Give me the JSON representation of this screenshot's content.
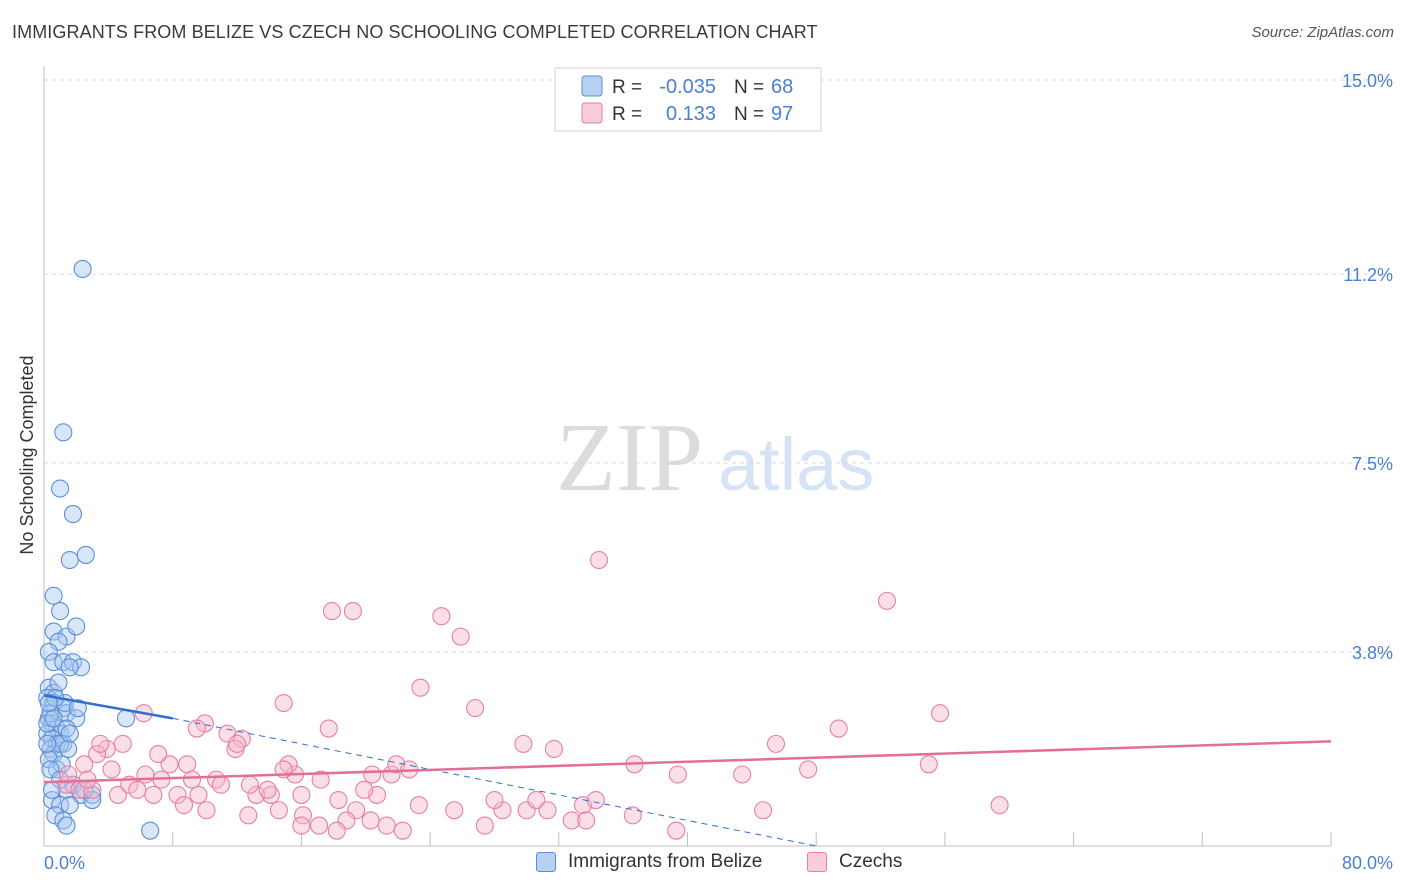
{
  "header": {
    "title": "IMMIGRANTS FROM BELIZE VS CZECH NO SCHOOLING COMPLETED CORRELATION CHART",
    "source": "Source: ZipAtlas.com"
  },
  "watermark": {
    "zip": "ZIP",
    "atlas": "atlas"
  },
  "colors": {
    "belize_fill": "#a8c8f0",
    "belize_stroke": "#5b8fd9",
    "belize_line": "#2f6fd0",
    "czech_fill": "#f7b8cc",
    "czech_stroke": "#e87fa0",
    "czech_line": "#e36f98",
    "axis_label": "#4a7fd4",
    "grid": "#d8d8d8"
  },
  "chart_data": {
    "type": "scatter",
    "title": "IMMIGRANTS FROM BELIZE VS CZECH NO SCHOOLING COMPLETED CORRELATION CHART",
    "xlabel": "",
    "ylabel": "No Schooling Completed",
    "xlim": [
      0,
      80
    ],
    "ylim": [
      0,
      15
    ],
    "x_tick_labels": {
      "min": "0.0%",
      "max": "80.0%"
    },
    "y_ticks": [
      {
        "value": 3.8,
        "label": "3.8%"
      },
      {
        "value": 7.5,
        "label": "7.5%"
      },
      {
        "value": 11.2,
        "label": "11.2%"
      },
      {
        "value": 15.0,
        "label": "15.0%"
      }
    ],
    "legend": [
      {
        "name": "Immigrants from Belize",
        "r_label": "R =",
        "r_value": "-0.035",
        "n_label": "N =",
        "n_value": "68"
      },
      {
        "name": "Czechs",
        "r_label": "R =",
        "r_value": "0.133",
        "n_label": "N =",
        "n_value": "97"
      }
    ],
    "trend_lines": [
      {
        "series": "Immigrants from Belize",
        "x0": 0,
        "y0": 2.95,
        "x1": 8,
        "y1": 2.5,
        "dashed_to_x": 48,
        "dashed_to_y": 0.0
      },
      {
        "series": "Czechs",
        "x0": 0,
        "y0": 1.25,
        "x1": 80,
        "y1": 2.05
      }
    ],
    "series": [
      {
        "name": "Immigrants from Belize",
        "points": [
          [
            2.4,
            11.3
          ],
          [
            1.2,
            8.1
          ],
          [
            1.0,
            7.0
          ],
          [
            1.8,
            6.5
          ],
          [
            1.6,
            5.6
          ],
          [
            2.6,
            5.7
          ],
          [
            0.6,
            4.9
          ],
          [
            1.0,
            4.6
          ],
          [
            0.6,
            4.2
          ],
          [
            1.4,
            4.1
          ],
          [
            2.0,
            4.3
          ],
          [
            0.9,
            4.0
          ],
          [
            0.3,
            3.8
          ],
          [
            0.6,
            3.6
          ],
          [
            1.2,
            3.6
          ],
          [
            1.8,
            3.6
          ],
          [
            2.3,
            3.5
          ],
          [
            0.3,
            3.1
          ],
          [
            0.6,
            3.0
          ],
          [
            0.2,
            2.9
          ],
          [
            0.6,
            2.8
          ],
          [
            1.2,
            2.7
          ],
          [
            1.4,
            2.6
          ],
          [
            2.0,
            2.5
          ],
          [
            0.3,
            2.5
          ],
          [
            0.5,
            2.4
          ],
          [
            0.8,
            2.3
          ],
          [
            1.0,
            2.2
          ],
          [
            1.4,
            2.3
          ],
          [
            0.2,
            2.2
          ],
          [
            0.5,
            2.1
          ],
          [
            0.8,
            2.0
          ],
          [
            1.2,
            2.0
          ],
          [
            0.4,
            1.9
          ],
          [
            0.6,
            1.8
          ],
          [
            1.0,
            2.0
          ],
          [
            1.5,
            1.9
          ],
          [
            0.3,
            1.7
          ],
          [
            5.1,
            2.5
          ],
          [
            1.6,
            2.2
          ],
          [
            0.4,
            2.6
          ],
          [
            0.2,
            2.4
          ],
          [
            0.8,
            1.5
          ],
          [
            1.4,
            1.1
          ],
          [
            2.3,
            1.0
          ],
          [
            3.0,
            1.0
          ],
          [
            0.5,
            0.9
          ],
          [
            1.0,
            0.8
          ],
          [
            1.6,
            0.8
          ],
          [
            0.7,
            0.6
          ],
          [
            1.2,
            0.5
          ],
          [
            1.4,
            0.4
          ],
          [
            3.0,
            0.9
          ],
          [
            6.6,
            0.3
          ],
          [
            0.2,
            2.0
          ],
          [
            0.6,
            2.5
          ],
          [
            1.1,
            1.6
          ],
          [
            1.8,
            1.2
          ],
          [
            0.9,
            3.2
          ],
          [
            1.3,
            2.8
          ],
          [
            0.4,
            1.5
          ],
          [
            2.1,
            2.7
          ],
          [
            0.7,
            2.9
          ],
          [
            1.6,
            3.5
          ],
          [
            0.3,
            2.8
          ],
          [
            1.0,
            1.3
          ],
          [
            2.5,
            1.1
          ],
          [
            0.5,
            1.1
          ]
        ]
      },
      {
        "name": "Czechs",
        "points": [
          [
            34.5,
            5.6
          ],
          [
            17.9,
            4.6
          ],
          [
            19.2,
            4.6
          ],
          [
            24.7,
            4.5
          ],
          [
            25.9,
            4.1
          ],
          [
            52.4,
            4.8
          ],
          [
            23.4,
            3.1
          ],
          [
            14.9,
            2.8
          ],
          [
            26.8,
            2.7
          ],
          [
            6.2,
            2.6
          ],
          [
            10.0,
            2.4
          ],
          [
            11.4,
            2.2
          ],
          [
            12.3,
            2.1
          ],
          [
            17.7,
            2.3
          ],
          [
            29.8,
            2.0
          ],
          [
            31.7,
            1.9
          ],
          [
            45.5,
            2.0
          ],
          [
            49.4,
            2.3
          ],
          [
            55.7,
            2.6
          ],
          [
            3.9,
            1.9
          ],
          [
            4.9,
            2.0
          ],
          [
            7.8,
            1.6
          ],
          [
            8.9,
            1.6
          ],
          [
            11.9,
            1.9
          ],
          [
            3.3,
            1.8
          ],
          [
            2.5,
            1.6
          ],
          [
            4.2,
            1.5
          ],
          [
            6.3,
            1.4
          ],
          [
            10.7,
            1.3
          ],
          [
            13.2,
            1.0
          ],
          [
            15.6,
            1.4
          ],
          [
            17.2,
            1.3
          ],
          [
            20.4,
            1.4
          ],
          [
            21.6,
            1.4
          ],
          [
            39.4,
            1.4
          ],
          [
            43.4,
            1.4
          ],
          [
            47.5,
            1.5
          ],
          [
            55.0,
            1.6
          ],
          [
            1.4,
            1.2
          ],
          [
            2.2,
            1.1
          ],
          [
            3.0,
            1.1
          ],
          [
            4.6,
            1.0
          ],
          [
            5.3,
            1.2
          ],
          [
            6.8,
            1.0
          ],
          [
            8.3,
            1.0
          ],
          [
            9.6,
            1.0
          ],
          [
            11.0,
            1.2
          ],
          [
            12.8,
            1.2
          ],
          [
            14.1,
            1.0
          ],
          [
            16.0,
            1.0
          ],
          [
            18.3,
            0.9
          ],
          [
            19.4,
            0.7
          ],
          [
            20.7,
            1.0
          ],
          [
            23.3,
            0.8
          ],
          [
            25.5,
            0.7
          ],
          [
            28.5,
            0.7
          ],
          [
            30.0,
            0.7
          ],
          [
            33.5,
            0.8
          ],
          [
            36.6,
            0.6
          ],
          [
            44.7,
            0.7
          ],
          [
            59.4,
            0.8
          ],
          [
            8.7,
            0.8
          ],
          [
            10.1,
            0.7
          ],
          [
            12.7,
            0.6
          ],
          [
            14.6,
            0.7
          ],
          [
            16.1,
            0.6
          ],
          [
            17.1,
            0.4
          ],
          [
            18.8,
            0.5
          ],
          [
            20.3,
            0.5
          ],
          [
            21.3,
            0.4
          ],
          [
            22.3,
            0.3
          ],
          [
            27.4,
            0.4
          ],
          [
            32.8,
            0.5
          ],
          [
            33.7,
            0.5
          ],
          [
            39.3,
            0.3
          ],
          [
            16.0,
            0.4
          ],
          [
            18.2,
            0.3
          ],
          [
            1.5,
            1.4
          ],
          [
            2.7,
            1.3
          ],
          [
            5.8,
            1.1
          ],
          [
            7.3,
            1.3
          ],
          [
            9.2,
            1.3
          ],
          [
            13.9,
            1.1
          ],
          [
            15.2,
            1.6
          ],
          [
            19.9,
            1.1
          ],
          [
            21.9,
            1.6
          ],
          [
            28.0,
            0.9
          ],
          [
            30.6,
            0.9
          ],
          [
            31.3,
            0.7
          ],
          [
            34.3,
            0.9
          ],
          [
            3.5,
            2.0
          ],
          [
            7.1,
            1.8
          ],
          [
            9.5,
            2.3
          ],
          [
            12.0,
            2.0
          ],
          [
            14.9,
            1.5
          ],
          [
            22.7,
            1.5
          ],
          [
            36.7,
            1.6
          ]
        ]
      }
    ]
  }
}
